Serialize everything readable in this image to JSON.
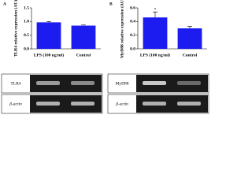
{
  "chart_data": [
    {
      "type": "bar",
      "panel_label": "A",
      "y_label": "TLR4 relative expression (AU)",
      "categories": [
        "LPS (100 ng/ml)",
        "Control"
      ],
      "values": [
        0.97,
        0.85
      ],
      "errors": [
        0.03,
        0.03
      ],
      "color": "#1c1cf0",
      "ylim": [
        0,
        1.5
      ],
      "yticks": [
        {
          "value": 0,
          "label": "0.0"
        },
        {
          "value": 0.5,
          "label": "0.5"
        },
        {
          "value": 1,
          "label": "1.0"
        },
        {
          "value": 1.5,
          "label": "1.5"
        }
      ]
    },
    {
      "type": "bar",
      "panel_label": "B",
      "y_label": "MyD88 relative expression (AU)",
      "categories": [
        "LPS (100 ng/ml)",
        "Control"
      ],
      "values": [
        0.46,
        0.3
      ],
      "errors": [
        0.08,
        0.03
      ],
      "color": "#1c1cf0",
      "ylim": [
        0,
        0.6
      ],
      "annotation": "*",
      "yticks": [
        {
          "value": 0,
          "label": "0.0"
        },
        {
          "value": 0.2,
          "label": "0.2"
        },
        {
          "value": 0.4,
          "label": "0.4"
        },
        {
          "value": 0.6,
          "label": "0.6"
        }
      ]
    }
  ],
  "gels": [
    {
      "rows": [
        "TLR4",
        "β-actin"
      ]
    },
    {
      "rows": [
        "MyD88",
        "β-actin"
      ]
    }
  ]
}
